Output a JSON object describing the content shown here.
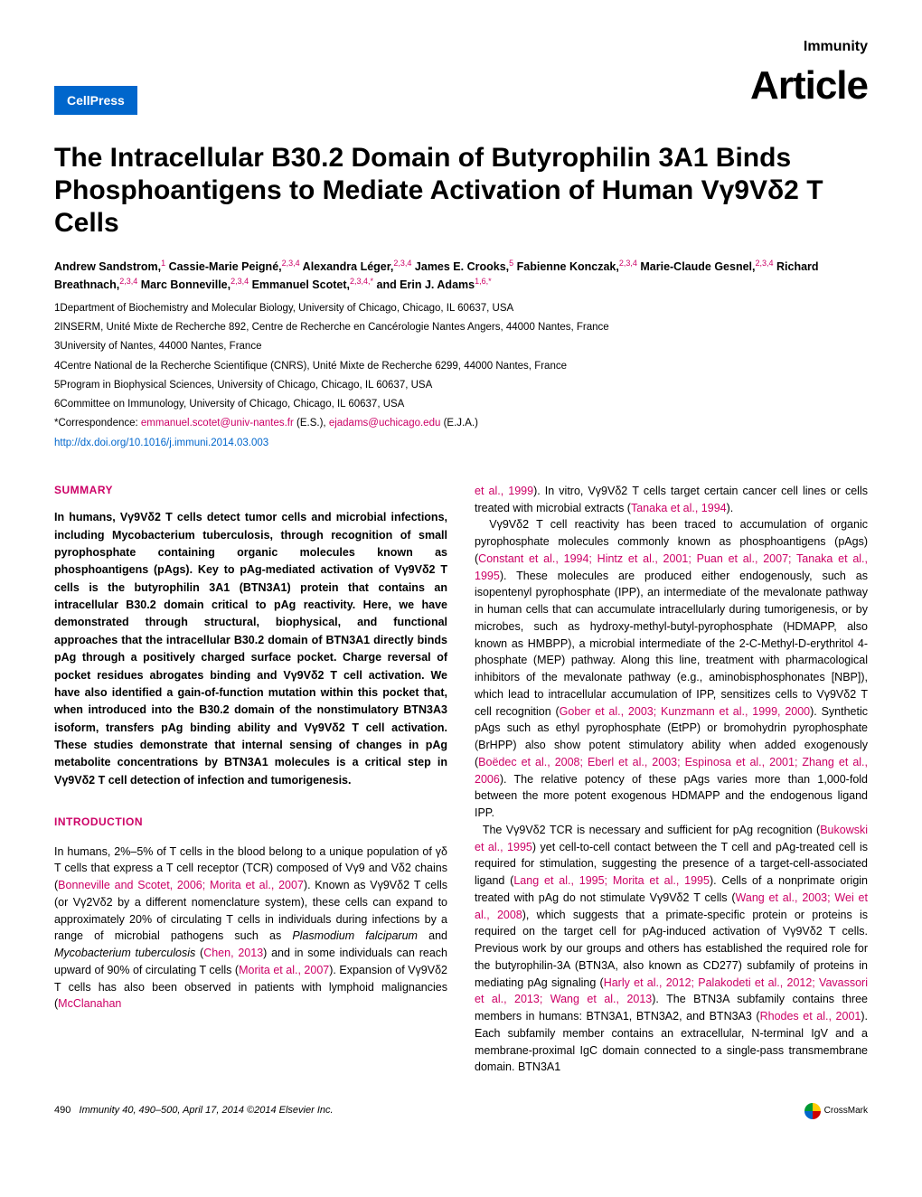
{
  "header": {
    "publisher": "CellPress",
    "journal": "Immunity",
    "articleType": "Article"
  },
  "title": "The Intracellular B30.2 Domain of Butyrophilin 3A1 Binds Phosphoantigens to Mediate Activation of Human Vγ9Vδ2 T Cells",
  "authors_html": "Andrew Sandstrom,<span class='sup'>1</span> Cassie-Marie Peigné,<span class='sup'>2,3,4</span> Alexandra Léger,<span class='sup'>2,3,4</span> James E. Crooks,<span class='sup'>5</span> Fabienne Konczak,<span class='sup'>2,3,4</span> Marie-Claude Gesnel,<span class='sup'>2,3,4</span> Richard Breathnach,<span class='sup'>2,3,4</span> Marc Bonneville,<span class='sup'>2,3,4</span> Emmanuel Scotet,<span class='sup'>2,3,4,</span><span class='sup'>*</span> and Erin J. Adams<span class='sup'>1,6,</span><span class='sup'>*</span>",
  "affiliations": [
    "1Department of Biochemistry and Molecular Biology, University of Chicago, Chicago, IL 60637, USA",
    "2INSERM, Unité Mixte de Recherche 892, Centre de Recherche en Cancérologie Nantes Angers, 44000 Nantes, France",
    "3University of Nantes, 44000 Nantes, France",
    "4Centre National de la Recherche Scientifique (CNRS), Unité Mixte de Recherche 6299, 44000 Nantes, France",
    "5Program in Biophysical Sciences, University of Chicago, Chicago, IL 60637, USA",
    "6Committee on Immunology, University of Chicago, Chicago, IL 60637, USA"
  ],
  "correspondence_prefix": "*Correspondence: ",
  "correspondence_email1": "emmanuel.scotet@univ-nantes.fr",
  "correspondence_mid": " (E.S.), ",
  "correspondence_email2": "ejadams@uchicago.edu",
  "correspondence_suffix": " (E.J.A.)",
  "doi": "http://dx.doi.org/10.1016/j.immuni.2014.03.003",
  "summary": {
    "heading": "SUMMARY",
    "text": "In humans, Vγ9Vδ2 T cells detect tumor cells and microbial infections, including Mycobacterium tuberculosis, through recognition of small pyrophosphate containing organic molecules known as phosphoantigens (pAgs). Key to pAg-mediated activation of Vγ9Vδ2 T cells is the butyrophilin 3A1 (BTN3A1) protein that contains an intracellular B30.2 domain critical to pAg reactivity. Here, we have demonstrated through structural, biophysical, and functional approaches that the intracellular B30.2 domain of BTN3A1 directly binds pAg through a positively charged surface pocket. Charge reversal of pocket residues abrogates binding and Vγ9Vδ2 T cell activation. We have also identified a gain-of-function mutation within this pocket that, when introduced into the B30.2 domain of the nonstimulatory BTN3A3 isoform, transfers pAg binding ability and Vγ9Vδ2 T cell activation. These studies demonstrate that internal sensing of changes in pAg metabolite concentrations by BTN3A1 molecules is a critical step in Vγ9Vδ2 T cell detection of infection and tumorigenesis."
  },
  "introduction": {
    "heading": "INTRODUCTION",
    "col1_html": "In humans, 2%–5% of T cells in the blood belong to a unique population of γδ T cells that express a T cell receptor (TCR) composed of Vγ9 and Vδ2 chains (<span class='link'>Bonneville and Scotet, 2006; Morita et al., 2007</span>). Known as Vγ9Vδ2 T cells (or Vγ2Vδ2 by a different nomenclature system), these cells can expand to approximately 20% of circulating T cells in individuals during infections by a range of microbial pathogens such as <span class='italic'>Plasmodium falciparum</span> and <span class='italic'>Mycobacterium tuberculosis</span> (<span class='link'>Chen, 2013</span>) and in some individuals can reach upward of 90% of circulating T cells (<span class='link'>Morita et al., 2007</span>). Expansion of Vγ9Vδ2 T cells has also been observed in patients with lymphoid malignancies (<span class='link'>McClanahan</span>",
    "col2_html": "<span class='link'>et al., 1999</span>). In vitro, Vγ9Vδ2 T cells target certain cancer cell lines or cells treated with microbial extracts (<span class='link'>Tanaka et al., 1994</span>).<br>&nbsp;&nbsp;Vγ9Vδ2 T cell reactivity has been traced to accumulation of organic pyrophosphate molecules commonly known as phosphoantigens (pAgs) (<span class='link'>Constant et al., 1994; Hintz et al., 2001; Puan et al., 2007; Tanaka et al., 1995</span>). These molecules are produced either endogenously, such as isopentenyl pyrophosphate (IPP), an intermediate of the mevalonate pathway in human cells that can accumulate intracellularly during tumorigenesis, or by microbes, such as hydroxy-methyl-butyl-pyrophosphate (HDMAPP, also known as HMBPP), a microbial intermediate of the 2-C-Methyl-D-erythritol 4-phosphate (MEP) pathway. Along this line, treatment with pharmacological inhibitors of the mevalonate pathway (e.g., aminobisphosphonates [NBP]), which lead to intracellular accumulation of IPP, sensitizes cells to Vγ9Vδ2 T cell recognition (<span class='link'>Gober et al., 2003; Kunzmann et al., 1999, 2000</span>). Synthetic pAgs such as ethyl pyrophosphate (EtPP) or bromohydrin pyrophosphate (BrHPP) also show potent stimulatory ability when added exogenously (<span class='link'>Boëdec et al., 2008; Eberl et al., 2003; Espinosa et al., 2001; Zhang et al., 2006</span>). The relative potency of these pAgs varies more than 1,000-fold between the more potent exogenous HDMAPP and the endogenous ligand IPP.<br>&nbsp;&nbsp;The Vγ9Vδ2 TCR is necessary and sufficient for pAg recognition (<span class='link'>Bukowski et al., 1995</span>) yet cell-to-cell contact between the T cell and pAg-treated cell is required for stimulation, suggesting the presence of a target-cell-associated ligand (<span class='link'>Lang et al., 1995; Morita et al., 1995</span>). Cells of a nonprimate origin treated with pAg do not stimulate Vγ9Vδ2 T cells (<span class='link'>Wang et al., 2003; Wei et al., 2008</span>), which suggests that a primate-specific protein or proteins is required on the target cell for pAg-induced activation of Vγ9Vδ2 T cells. Previous work by our groups and others has established the required role for the butyrophilin-3A (BTN3A, also known as CD277) subfamily of proteins in mediating pAg signaling (<span class='link'>Harly et al., 2012; Palakodeti et al., 2012; Vavassori et al., 2013; Wang et al., 2013</span>). The BTN3A subfamily contains three members in humans: BTN3A1, BTN3A2, and BTN3A3 (<span class='link'>Rhodes et al., 2001</span>). Each subfamily member contains an extracellular, N-terminal IgV and a membrane-proximal IgC domain connected to a single-pass transmembrane domain. BTN3A1"
  },
  "footer": {
    "page": "490",
    "citation": "Immunity 40, 490–500, April 17, 2014 ©2014 Elsevier Inc.",
    "crossmark": "CrossMark"
  }
}
